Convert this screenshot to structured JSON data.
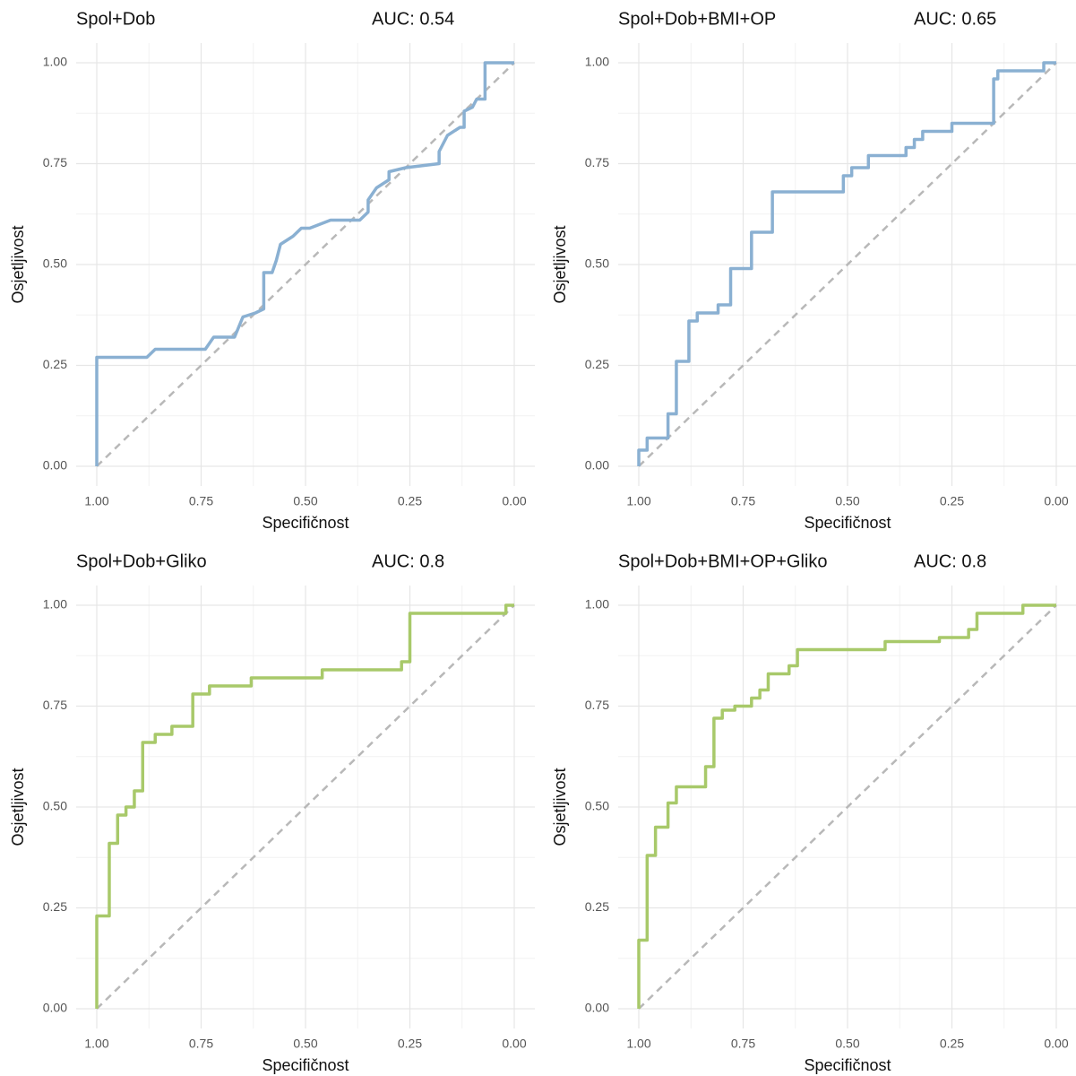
{
  "chart_data": [
    {
      "type": "line",
      "title": "Spol+Dob",
      "annotation": "AUC: 0.54",
      "xlabel": "Specifičnost",
      "ylabel": "Osjetljivost",
      "color": "#8ab0d2",
      "x": [
        1,
        1,
        0.88,
        0.86,
        0.74,
        0.72,
        0.67,
        0.65,
        0.62,
        0.6,
        0.6,
        0.58,
        0.57,
        0.56,
        0.53,
        0.51,
        0.49,
        0.44,
        0.37,
        0.35,
        0.35,
        0.33,
        0.3,
        0.3,
        0.26,
        0.18,
        0.18,
        0.16,
        0.13,
        0.12,
        0.12,
        0.1,
        0.09,
        0.07,
        0.07,
        0
      ],
      "values": [
        0,
        0.27,
        0.27,
        0.29,
        0.29,
        0.32,
        0.32,
        0.37,
        0.38,
        0.39,
        0.48,
        0.48,
        0.51,
        0.55,
        0.57,
        0.59,
        0.59,
        0.61,
        0.61,
        0.63,
        0.66,
        0.69,
        0.71,
        0.73,
        0.74,
        0.75,
        0.78,
        0.82,
        0.84,
        0.84,
        0.88,
        0.89,
        0.91,
        0.91,
        1,
        1
      ],
      "xlim": [
        1,
        0
      ],
      "ylim": [
        0,
        1
      ],
      "xticks": [
        {
          "value": 1,
          "label": "1.00"
        },
        {
          "value": 0.75,
          "label": "0.75"
        },
        {
          "value": 0.5,
          "label": "0.50"
        },
        {
          "value": 0.25,
          "label": "0.25"
        },
        {
          "value": 0,
          "label": "0.00"
        }
      ],
      "yticks": [
        {
          "value": 0,
          "label": "0.00"
        },
        {
          "value": 0.25,
          "label": "0.25"
        },
        {
          "value": 0.5,
          "label": "0.50"
        },
        {
          "value": 0.75,
          "label": "0.75"
        },
        {
          "value": 1,
          "label": "1.00"
        }
      ],
      "grid": true,
      "minor_grid": true,
      "diagonal": true
    },
    {
      "type": "line",
      "title": "Spol+Dob+BMI+OP",
      "annotation": "AUC: 0.65",
      "xlabel": "Specifičnost",
      "ylabel": "Osjetljivost",
      "color": "#8ab0d2",
      "x": [
        1,
        1,
        0.98,
        0.98,
        0.93,
        0.93,
        0.91,
        0.91,
        0.88,
        0.88,
        0.86,
        0.86,
        0.81,
        0.81,
        0.78,
        0.78,
        0.73,
        0.73,
        0.68,
        0.68,
        0.51,
        0.51,
        0.49,
        0.49,
        0.45,
        0.45,
        0.36,
        0.36,
        0.34,
        0.34,
        0.32,
        0.32,
        0.25,
        0.25,
        0.15,
        0.15,
        0.14,
        0.14,
        0.03,
        0.03,
        0
      ],
      "values": [
        0,
        0.04,
        0.04,
        0.07,
        0.07,
        0.13,
        0.13,
        0.26,
        0.26,
        0.36,
        0.36,
        0.38,
        0.38,
        0.4,
        0.4,
        0.49,
        0.49,
        0.58,
        0.58,
        0.68,
        0.68,
        0.72,
        0.72,
        0.74,
        0.74,
        0.77,
        0.77,
        0.79,
        0.79,
        0.81,
        0.81,
        0.83,
        0.83,
        0.85,
        0.85,
        0.96,
        0.96,
        0.98,
        0.98,
        1,
        1
      ],
      "xlim": [
        1,
        0
      ],
      "ylim": [
        0,
        1
      ],
      "xticks": [
        {
          "value": 1,
          "label": "1.00"
        },
        {
          "value": 0.75,
          "label": "0.75"
        },
        {
          "value": 0.5,
          "label": "0.50"
        },
        {
          "value": 0.25,
          "label": "0.25"
        },
        {
          "value": 0,
          "label": "0.00"
        }
      ],
      "yticks": [
        {
          "value": 0,
          "label": "0.00"
        },
        {
          "value": 0.25,
          "label": "0.25"
        },
        {
          "value": 0.5,
          "label": "0.50"
        },
        {
          "value": 0.75,
          "label": "0.75"
        },
        {
          "value": 1,
          "label": "1.00"
        }
      ],
      "grid": true,
      "minor_grid": true,
      "diagonal": true
    },
    {
      "type": "line",
      "title": "Spol+Dob+Gliko",
      "annotation": "AUC: 0.8",
      "xlabel": "Specifičnost",
      "ylabel": "Osjetljivost",
      "color": "#a8c96a",
      "x": [
        1,
        1,
        0.97,
        0.97,
        0.95,
        0.95,
        0.93,
        0.93,
        0.91,
        0.91,
        0.89,
        0.89,
        0.86,
        0.86,
        0.82,
        0.82,
        0.77,
        0.77,
        0.73,
        0.73,
        0.63,
        0.63,
        0.46,
        0.46,
        0.27,
        0.27,
        0.25,
        0.25,
        0.02,
        0.02,
        0
      ],
      "values": [
        0,
        0.23,
        0.23,
        0.41,
        0.41,
        0.48,
        0.48,
        0.5,
        0.5,
        0.54,
        0.54,
        0.66,
        0.66,
        0.68,
        0.68,
        0.7,
        0.7,
        0.78,
        0.78,
        0.8,
        0.8,
        0.82,
        0.82,
        0.84,
        0.84,
        0.86,
        0.86,
        0.98,
        0.98,
        1,
        1
      ],
      "xlim": [
        1,
        0
      ],
      "ylim": [
        0,
        1
      ],
      "xticks": [
        {
          "value": 1,
          "label": "1.00"
        },
        {
          "value": 0.75,
          "label": "0.75"
        },
        {
          "value": 0.5,
          "label": "0.50"
        },
        {
          "value": 0.25,
          "label": "0.25"
        },
        {
          "value": 0,
          "label": "0.00"
        }
      ],
      "yticks": [
        {
          "value": 0,
          "label": "0.00"
        },
        {
          "value": 0.25,
          "label": "0.25"
        },
        {
          "value": 0.5,
          "label": "0.50"
        },
        {
          "value": 0.75,
          "label": "0.75"
        },
        {
          "value": 1,
          "label": "1.00"
        }
      ],
      "grid": true,
      "minor_grid": true,
      "diagonal": true
    },
    {
      "type": "line",
      "title": "Spol+Dob+BMI+OP+Gliko",
      "annotation": "AUC: 0.8",
      "xlabel": "Specifičnost",
      "ylabel": "Osjetljivost",
      "color": "#a8c96a",
      "x": [
        1,
        1,
        0.98,
        0.98,
        0.96,
        0.96,
        0.93,
        0.93,
        0.91,
        0.91,
        0.84,
        0.84,
        0.82,
        0.82,
        0.8,
        0.8,
        0.77,
        0.77,
        0.73,
        0.73,
        0.71,
        0.71,
        0.69,
        0.69,
        0.64,
        0.64,
        0.62,
        0.62,
        0.41,
        0.41,
        0.28,
        0.28,
        0.21,
        0.21,
        0.19,
        0.19,
        0.08,
        0.08,
        0
      ],
      "values": [
        0,
        0.17,
        0.17,
        0.38,
        0.38,
        0.45,
        0.45,
        0.51,
        0.51,
        0.55,
        0.55,
        0.6,
        0.6,
        0.72,
        0.72,
        0.74,
        0.74,
        0.75,
        0.75,
        0.77,
        0.77,
        0.79,
        0.79,
        0.83,
        0.83,
        0.85,
        0.85,
        0.89,
        0.89,
        0.91,
        0.91,
        0.92,
        0.92,
        0.94,
        0.94,
        0.98,
        0.98,
        1,
        1
      ],
      "xlim": [
        1,
        0
      ],
      "ylim": [
        0,
        1
      ],
      "xticks": [
        {
          "value": 1,
          "label": "1.00"
        },
        {
          "value": 0.75,
          "label": "0.75"
        },
        {
          "value": 0.5,
          "label": "0.50"
        },
        {
          "value": 0.25,
          "label": "0.25"
        },
        {
          "value": 0,
          "label": "0.00"
        }
      ],
      "yticks": [
        {
          "value": 0,
          "label": "0.00"
        },
        {
          "value": 0.25,
          "label": "0.25"
        },
        {
          "value": 0.5,
          "label": "0.50"
        },
        {
          "value": 0.75,
          "label": "0.75"
        },
        {
          "value": 1,
          "label": "1.00"
        }
      ],
      "grid": true,
      "minor_grid": true,
      "diagonal": true
    }
  ]
}
